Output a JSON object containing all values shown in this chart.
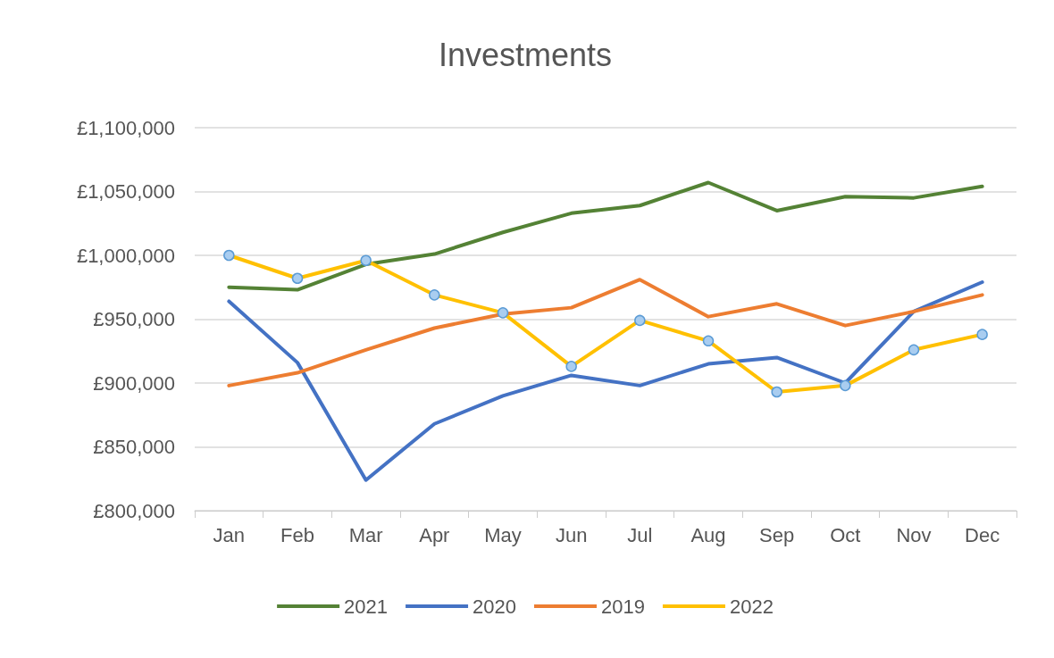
{
  "chart_data": {
    "type": "line",
    "title": "Investments",
    "categories": [
      "Jan",
      "Feb",
      "Mar",
      "Apr",
      "May",
      "Jun",
      "Jul",
      "Aug",
      "Sep",
      "Oct",
      "Nov",
      "Dec"
    ],
    "series": [
      {
        "name": "2021",
        "color": "#548235",
        "values": [
          975000,
          973000,
          993000,
          1001000,
          1018000,
          1033000,
          1039000,
          1057000,
          1035000,
          1046000,
          1045000,
          1054000
        ]
      },
      {
        "name": "2020",
        "color": "#4472c4",
        "values": [
          964000,
          916000,
          824000,
          868000,
          890000,
          906000,
          898000,
          915000,
          920000,
          900000,
          956000,
          979000
        ]
      },
      {
        "name": "2019",
        "color": "#ed7d31",
        "values": [
          898000,
          908000,
          926000,
          943000,
          954000,
          959000,
          981000,
          952000,
          962000,
          945000,
          956000,
          969000
        ]
      },
      {
        "name": "2022",
        "color": "#ffc000",
        "marker": "circle",
        "values": [
          1000000,
          982000,
          996000,
          969000,
          955000,
          913000,
          949000,
          933000,
          893000,
          898000,
          926000,
          938000
        ]
      }
    ],
    "ylim": [
      800000,
      1100000
    ],
    "yticks": [
      {
        "value": 800000,
        "label": "£800,000"
      },
      {
        "value": 850000,
        "label": "£850,000"
      },
      {
        "value": 900000,
        "label": "£900,000"
      },
      {
        "value": 950000,
        "label": "£950,000"
      },
      {
        "value": 1000000,
        "label": "£1,000,000"
      },
      {
        "value": 1050000,
        "label": "£1,050,000"
      },
      {
        "value": 1100000,
        "label": "£1,100,000"
      }
    ],
    "grid": "y",
    "legend": "bottom",
    "marker": "none",
    "line_style": "solid"
  }
}
